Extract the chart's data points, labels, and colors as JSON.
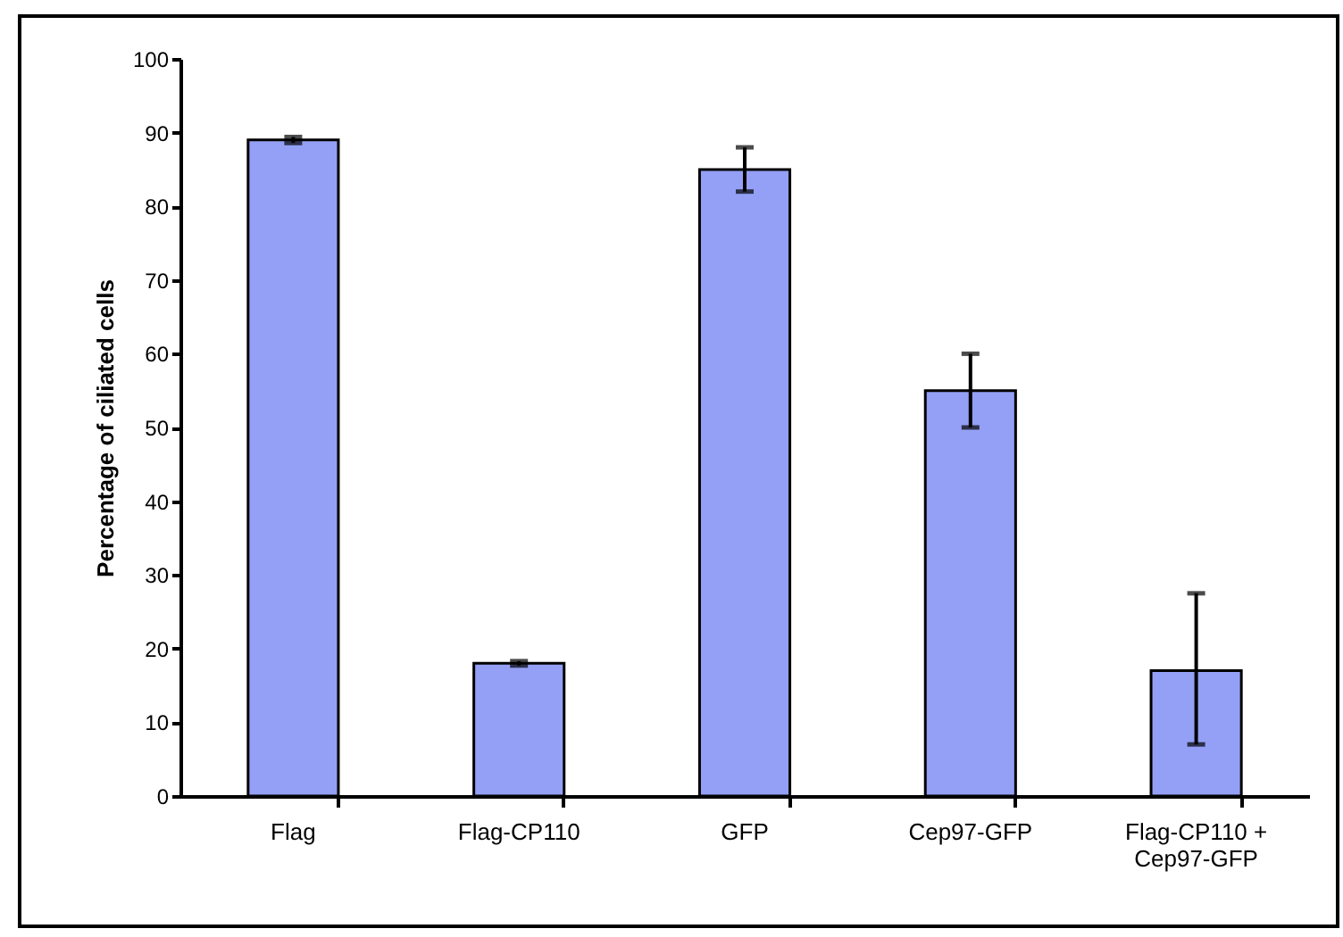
{
  "chart_data": {
    "type": "bar",
    "ylabel": "Percentage of ciliated cells",
    "categories": [
      "Flag",
      "Flag-CP110",
      "GFP",
      "Cep97-GFP",
      "Flag-CP110 +\nCep97-GFP"
    ],
    "values": [
      89,
      18,
      85,
      55,
      17
    ],
    "errors": [
      0.4,
      0.3,
      3,
      5,
      [
        7,
        27.5
      ]
    ],
    "color": "#94a0f5",
    "ylim": [
      0,
      100
    ],
    "yticks": [
      0,
      10,
      20,
      30,
      40,
      50,
      60,
      70,
      80,
      90,
      100
    ],
    "grid": false
  }
}
